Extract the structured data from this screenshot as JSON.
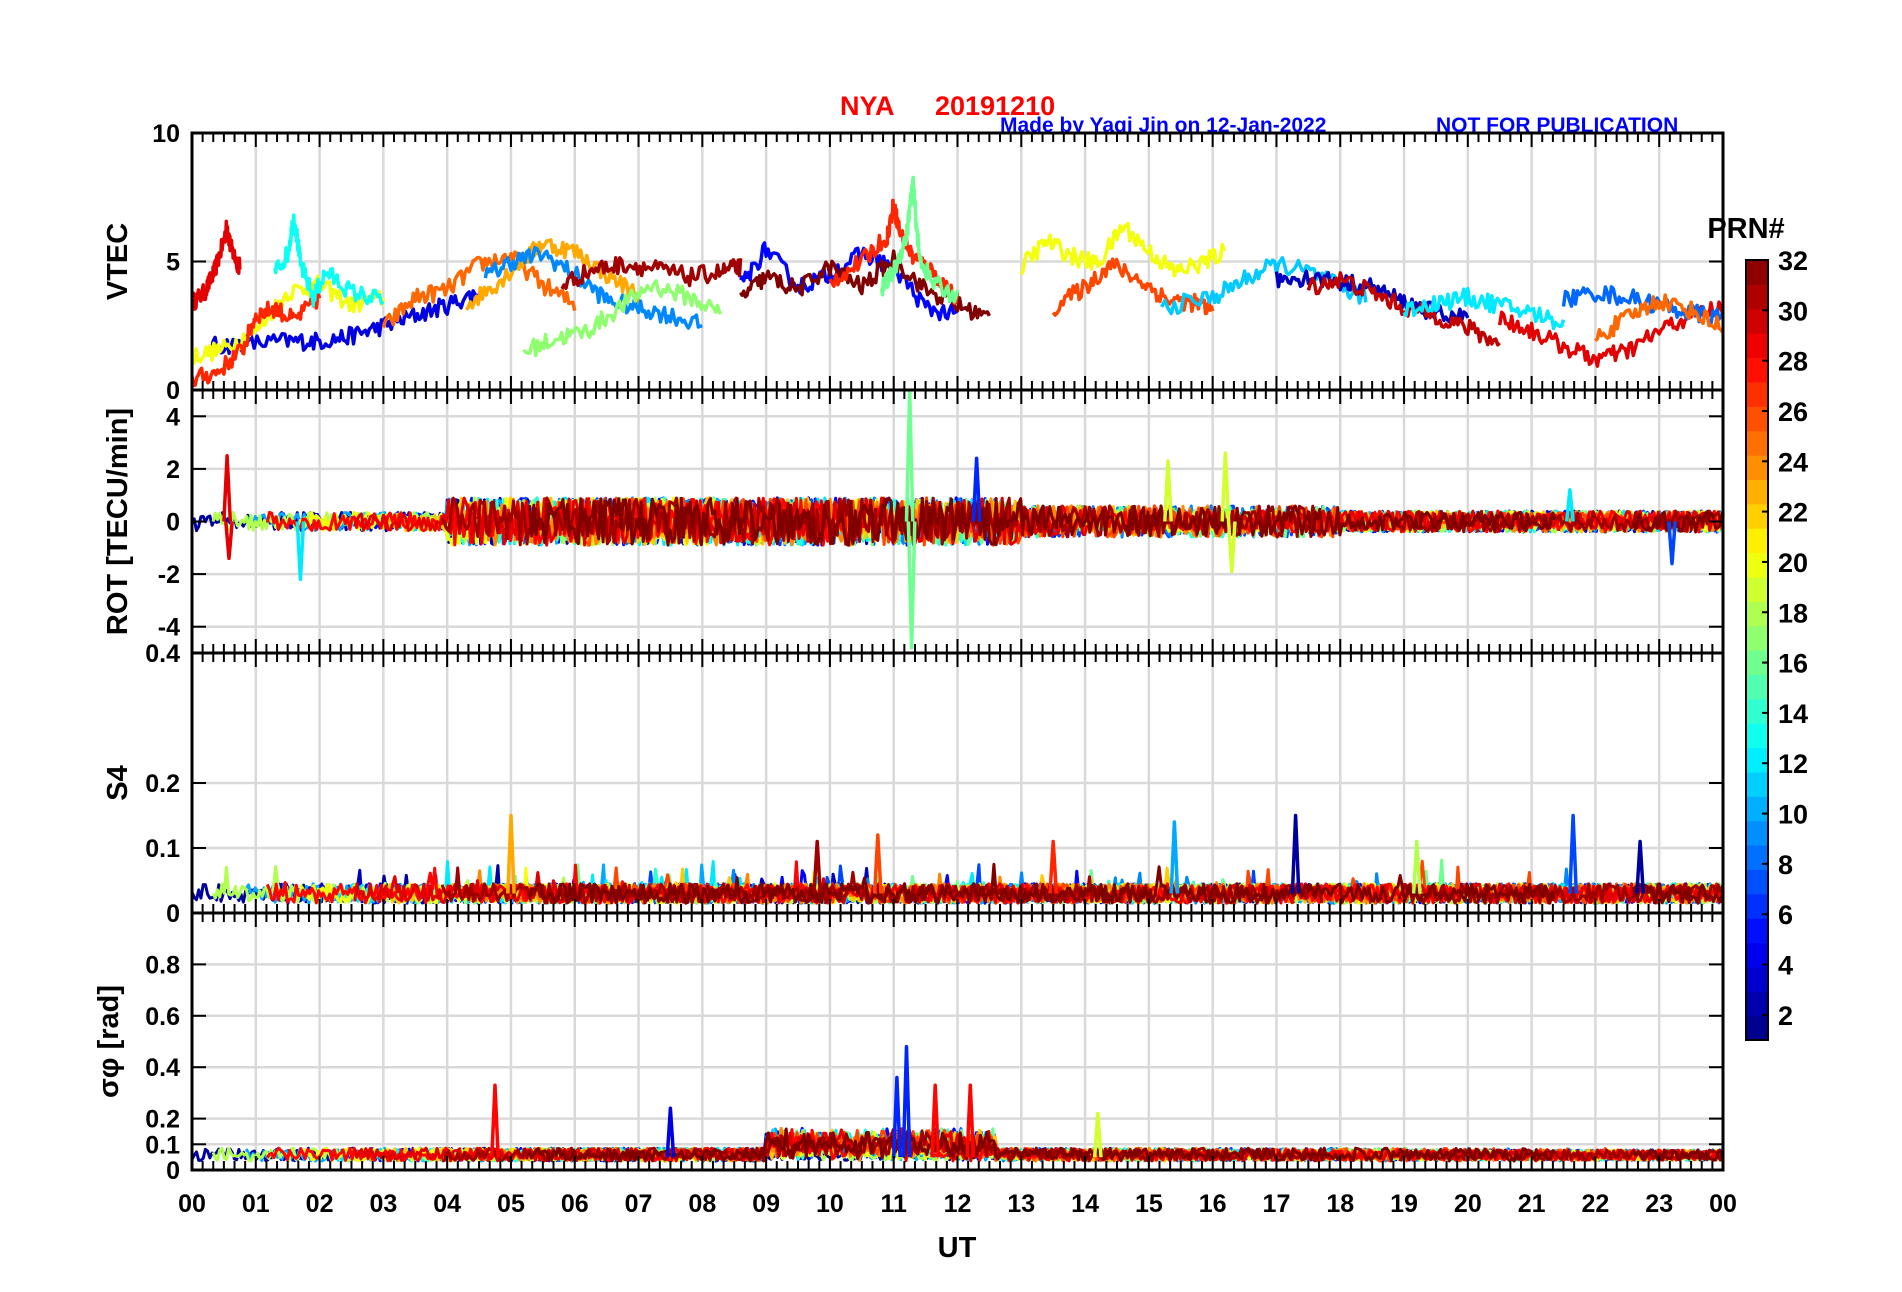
{
  "chart_data": {
    "type": "line",
    "title": {
      "station": "NYA",
      "date": "20191210",
      "credit": "Made by Yaqi Jin on 12-Jan-2022",
      "notice": "NOT FOR PUBLICATION"
    },
    "colors": {
      "title": "#ff0000",
      "credit": "#0000ff",
      "grid": "#d9d9d9",
      "axis": "#000000"
    },
    "xlabel": "UT",
    "x_unit": "hours",
    "xlim": [
      0,
      24
    ],
    "xtick_labels": [
      "00",
      "01",
      "02",
      "03",
      "04",
      "05",
      "06",
      "07",
      "08",
      "09",
      "10",
      "11",
      "12",
      "13",
      "14",
      "15",
      "16",
      "17",
      "18",
      "19",
      "20",
      "21",
      "22",
      "23",
      "00"
    ],
    "colorbar": {
      "label": "PRN#",
      "colormap": "jet",
      "range": [
        1,
        32
      ],
      "tick_values": [
        2,
        4,
        6,
        8,
        10,
        12,
        14,
        16,
        18,
        20,
        22,
        24,
        26,
        28,
        30,
        32
      ],
      "tick_labels": [
        "2",
        "4",
        "6",
        "8",
        "10",
        "12",
        "14",
        "16",
        "18",
        "20",
        "22",
        "24",
        "26",
        "28",
        "30",
        "32"
      ]
    },
    "panels": [
      {
        "id": "vtec",
        "ylabel": "VTEC",
        "ylim": [
          0,
          10
        ],
        "yticks": [
          0,
          5,
          10
        ],
        "ytick_labels": [
          "0",
          "5",
          "10"
        ],
        "description": "Per-satellite VTEC, mostly 2-6 TECU, peaks near 11 UT",
        "series": [
          {
            "prn": 29,
            "x": [
              0.0,
              0.2,
              0.35,
              0.5,
              0.55,
              0.6,
              0.7,
              0.75
            ],
            "y": [
              3.4,
              3.8,
              4.6,
              5.8,
              6.4,
              5.6,
              5.0,
              4.8
            ]
          },
          {
            "prn": 4,
            "x": [
              0.3,
              0.8,
              1.5,
              2.0,
              2.5,
              3.0,
              3.5,
              4.0,
              4.5
            ],
            "y": [
              1.7,
              1.8,
              1.9,
              1.9,
              2.1,
              2.5,
              2.9,
              3.3,
              3.8
            ]
          },
          {
            "prn": 20,
            "x": [
              0.0,
              0.5,
              1.0,
              1.5,
              2.0,
              2.5,
              3.0
            ],
            "y": [
              1.3,
              1.6,
              2.3,
              3.8,
              4.1,
              3.3,
              3.6
            ]
          },
          {
            "prn": 27,
            "x": [
              0.0,
              0.4,
              0.8,
              1.0,
              1.3,
              1.6,
              2.0
            ],
            "y": [
              0.4,
              0.7,
              1.6,
              2.9,
              3.2,
              2.7,
              3.6
            ]
          },
          {
            "prn": 13,
            "x": [
              1.3,
              1.5,
              1.6,
              1.7,
              1.9,
              2.1,
              2.5,
              3.0
            ],
            "y": [
              4.6,
              5.3,
              6.8,
              4.9,
              3.6,
              4.6,
              3.8,
              3.5
            ]
          },
          {
            "prn": 25,
            "x": [
              3.0,
              3.5,
              4.0,
              4.5,
              5.0,
              5.5,
              6.0
            ],
            "y": [
              2.4,
              3.6,
              3.9,
              4.9,
              5.2,
              4.1,
              3.3
            ]
          },
          {
            "prn": 23,
            "x": [
              4.3,
              4.8,
              5.2,
              5.5,
              6.0,
              6.5,
              7.0
            ],
            "y": [
              3.3,
              4.2,
              5.1,
              5.7,
              5.4,
              4.5,
              3.7
            ]
          },
          {
            "prn": 9,
            "x": [
              4.6,
              5.0,
              5.5,
              6.0,
              6.5,
              7.0,
              7.5,
              8.0
            ],
            "y": [
              4.4,
              5.0,
              5.3,
              4.5,
              3.5,
              3.2,
              2.9,
              2.5
            ]
          },
          {
            "prn": 17,
            "x": [
              5.2,
              5.7,
              6.2,
              6.7,
              7.2,
              7.8,
              8.3
            ],
            "y": [
              1.5,
              2.0,
              2.3,
              3.2,
              4.1,
              3.6,
              3.0
            ]
          },
          {
            "prn": 31,
            "x": [
              5.8,
              6.3,
              6.8,
              7.3,
              7.8,
              8.3,
              8.6
            ],
            "y": [
              4.1,
              4.7,
              4.9,
              4.7,
              4.4,
              4.6,
              4.8
            ]
          },
          {
            "prn": 5,
            "x": [
              8.6,
              9.0,
              9.5,
              10.0,
              10.5,
              11.0,
              11.5,
              12.0
            ],
            "y": [
              4.0,
              5.5,
              4.0,
              4.5,
              5.3,
              4.8,
              3.2,
              2.9
            ]
          },
          {
            "prn": 32,
            "x": [
              8.6,
              9.0,
              9.5,
              10.0,
              10.5,
              11.0,
              11.5,
              12.0,
              12.5
            ],
            "y": [
              3.6,
              4.4,
              3.9,
              4.8,
              4.0,
              5.1,
              3.9,
              3.3,
              2.8
            ]
          },
          {
            "prn": 27,
            "x": [
              10.0,
              10.5,
              10.9,
              11.0,
              11.1,
              11.3,
              11.6,
              12.0
            ],
            "y": [
              4.2,
              5.0,
              6.0,
              7.2,
              6.1,
              5.2,
              4.6,
              3.6
            ]
          },
          {
            "prn": 16,
            "x": [
              10.8,
              11.0,
              11.2,
              11.3,
              11.4,
              11.6,
              12.0
            ],
            "y": [
              3.9,
              4.6,
              6.0,
              8.1,
              5.2,
              4.2,
              3.6
            ]
          },
          {
            "prn": 20,
            "x": [
              13.0,
              13.4,
              13.8,
              14.2,
              14.6,
              15.0,
              15.4,
              15.8,
              16.2
            ],
            "y": [
              4.8,
              5.8,
              5.2,
              4.9,
              6.4,
              5.4,
              4.6,
              4.9,
              5.4
            ]
          },
          {
            "prn": 26,
            "x": [
              13.5,
              14.0,
              14.4,
              14.9,
              15.3,
              15.7,
              16.0
            ],
            "y": [
              3.2,
              4.0,
              4.9,
              4.2,
              3.5,
              3.4,
              3.1
            ]
          },
          {
            "prn": 11,
            "x": [
              15.2,
              16.0,
              16.5,
              17.0,
              17.5,
              18.0,
              18.4
            ],
            "y": [
              3.2,
              3.6,
              4.3,
              4.9,
              4.6,
              4.0,
              3.6
            ]
          },
          {
            "prn": 3,
            "x": [
              17.0,
              17.5,
              18.0,
              18.5,
              19.0,
              19.5,
              20.0
            ],
            "y": [
              4.3,
              4.4,
              4.2,
              4.0,
              3.4,
              3.0,
              2.8
            ]
          },
          {
            "prn": 30,
            "x": [
              17.5,
              18.0,
              18.5,
              19.0,
              19.5,
              20.0,
              20.5
            ],
            "y": [
              4.0,
              4.3,
              3.8,
              3.2,
              2.9,
              2.4,
              1.8
            ]
          },
          {
            "prn": 12,
            "x": [
              19.0,
              19.5,
              20.0,
              20.5,
              21.0,
              21.5
            ],
            "y": [
              3.1,
              3.4,
              3.6,
              3.3,
              3.0,
              2.6
            ]
          },
          {
            "prn": 29,
            "x": [
              20.5,
              21.0,
              21.5,
              22.0,
              22.5,
              23.0,
              23.5,
              24.0
            ],
            "y": [
              2.8,
              2.3,
              1.7,
              1.2,
              1.5,
              2.3,
              2.9,
              3.2
            ]
          },
          {
            "prn": 8,
            "x": [
              21.5,
              22.0,
              22.5,
              23.0,
              23.5,
              24.0
            ],
            "y": [
              3.5,
              3.8,
              3.6,
              3.3,
              3.0,
              2.8
            ]
          },
          {
            "prn": 25,
            "x": [
              22.0,
              22.5,
              23.0,
              23.5,
              24.0
            ],
            "y": [
              2.0,
              2.8,
              3.5,
              3.1,
              2.4
            ]
          }
        ]
      },
      {
        "id": "rot",
        "ylabel": "ROT [TECU/min]",
        "ylim": [
          -5,
          5
        ],
        "yticks": [
          -4,
          -2,
          0,
          2,
          4
        ],
        "ytick_labels": [
          "-4",
          "-2",
          "0",
          "2",
          "4"
        ],
        "description": "Rate of TEC, fluctuations mostly within ±1.5; spike to about 5 and -4.8 near 11.2 UT (PRN 16)",
        "spikes": [
          {
            "prn": 29,
            "x": 0.55,
            "y": 2.5
          },
          {
            "prn": 29,
            "x": 0.58,
            "y": -1.4
          },
          {
            "prn": 12,
            "x": 1.7,
            "y": -2.2
          },
          {
            "prn": 16,
            "x": 11.25,
            "y": 5.0
          },
          {
            "prn": 16,
            "x": 11.28,
            "y": -4.8
          },
          {
            "prn": 6,
            "x": 12.3,
            "y": 2.4
          },
          {
            "prn": 19,
            "x": 15.3,
            "y": 2.3
          },
          {
            "prn": 19,
            "x": 16.2,
            "y": 2.6
          },
          {
            "prn": 19,
            "x": 16.3,
            "y": -1.9
          },
          {
            "prn": 7,
            "x": 23.2,
            "y": -1.6
          },
          {
            "prn": 12,
            "x": 21.6,
            "y": 1.2
          }
        ]
      },
      {
        "id": "s4",
        "ylabel": "S4",
        "ylim": [
          0,
          0.4
        ],
        "yticks": [
          0,
          0.1,
          0.2,
          0.4
        ],
        "ytick_labels": [
          "0",
          "0.1",
          "0.2",
          "0.4"
        ],
        "description": "Amplitude scintillation index, baseline about 0.02-0.05",
        "spikes": [
          {
            "prn": 23,
            "x": 5.0,
            "y": 0.15
          },
          {
            "prn": 31,
            "x": 9.8,
            "y": 0.11
          },
          {
            "prn": 26,
            "x": 10.75,
            "y": 0.12
          },
          {
            "prn": 27,
            "x": 13.5,
            "y": 0.11
          },
          {
            "prn": 10,
            "x": 15.4,
            "y": 0.14
          },
          {
            "prn": 2,
            "x": 17.3,
            "y": 0.15
          },
          {
            "prn": 7,
            "x": 21.65,
            "y": 0.15
          },
          {
            "prn": 2,
            "x": 22.7,
            "y": 0.11
          },
          {
            "prn": 18,
            "x": 19.2,
            "y": 0.11
          }
        ]
      },
      {
        "id": "sigma_phi",
        "ylabel": "σφ [rad]",
        "ylim": [
          0,
          1
        ],
        "yticks": [
          0,
          0.1,
          0.2,
          0.4,
          0.6,
          0.8
        ],
        "ytick_labels": [
          "0",
          "0.1",
          "0.2",
          "0.4",
          "0.6",
          "0.8"
        ],
        "description": "Phase scintillation index, baseline about 0.05; enhancement 9-12.5 UT",
        "spikes": [
          {
            "prn": 28,
            "x": 4.75,
            "y": 0.33
          },
          {
            "prn": 6,
            "x": 11.2,
            "y": 0.48
          },
          {
            "prn": 6,
            "x": 11.05,
            "y": 0.36
          },
          {
            "prn": 28,
            "x": 11.65,
            "y": 0.33
          },
          {
            "prn": 28,
            "x": 12.2,
            "y": 0.33
          },
          {
            "prn": 4,
            "x": 7.5,
            "y": 0.24
          },
          {
            "prn": 19,
            "x": 14.2,
            "y": 0.22
          }
        ]
      }
    ]
  }
}
